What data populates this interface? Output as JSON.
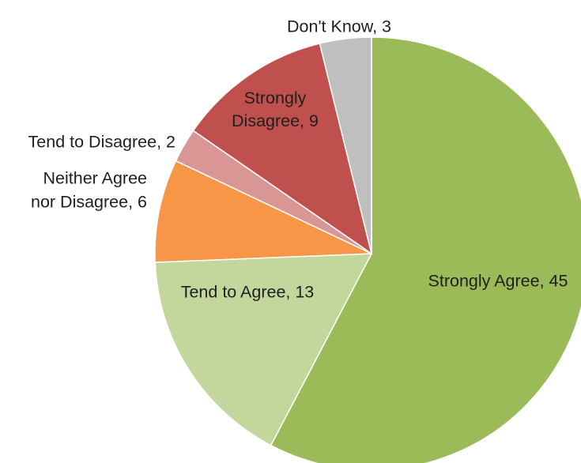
{
  "chart_data": {
    "type": "pie",
    "title": "",
    "legend": "none",
    "slices": [
      {
        "label": "Strongly Agree",
        "value": 45,
        "color": "#9BBB59",
        "display_lines": [
          "Strongly Agree, 45"
        ]
      },
      {
        "label": "Tend to Agree",
        "value": 13,
        "color": "#C3D69B",
        "display_lines": [
          "Tend to Agree, 13"
        ]
      },
      {
        "label": "Neither Agree nor Disagree",
        "value": 6,
        "color": "#F79646",
        "display_lines": [
          "Neither Agree",
          "nor Disagree, 6"
        ]
      },
      {
        "label": "Tend to Disagree",
        "value": 2,
        "color": "#D99694",
        "display_lines": [
          "Tend to Disagree, 2"
        ]
      },
      {
        "label": "Strongly Disagree",
        "value": 9,
        "color": "#C0504D",
        "display_lines": [
          "Strongly",
          "Disagree, 9"
        ]
      },
      {
        "label": "Don't Know",
        "value": 3,
        "color": "#BFBFBF",
        "display_lines": [
          "Don't Know, 3"
        ]
      }
    ]
  }
}
